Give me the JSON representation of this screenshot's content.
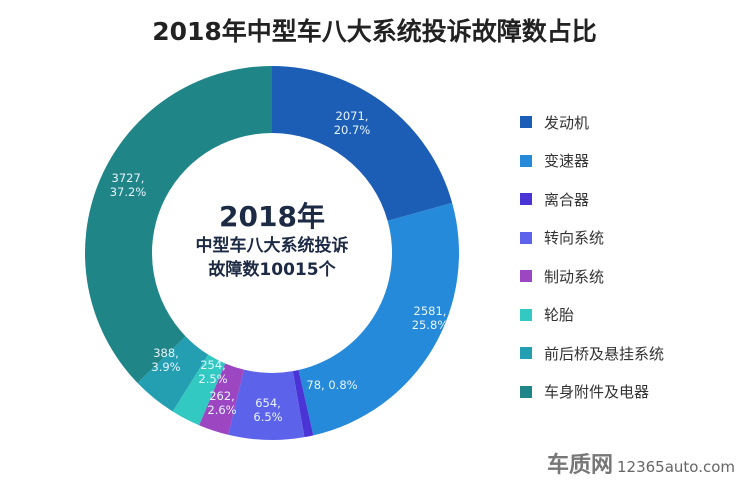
{
  "chart_data": {
    "type": "pie",
    "variant": "donut",
    "title": "2018年中型车八大系统投诉故障数占比",
    "center_text": {
      "year": "2018年",
      "line1": "中型车八大系统投诉",
      "line2": "故障数10015个"
    },
    "legend_position": "right",
    "slices": [
      {
        "name": "发动机",
        "value": 2071,
        "percent": "20.7%",
        "color": "#1c5eb5"
      },
      {
        "name": "变速器",
        "value": 2581,
        "percent": "25.8%",
        "color": "#258ad9"
      },
      {
        "name": "离合器",
        "value": 78,
        "percent": "0.8%",
        "color": "#4a34d6"
      },
      {
        "name": "转向系统",
        "value": 654,
        "percent": "6.5%",
        "color": "#5d62ea"
      },
      {
        "name": "制动系统",
        "value": 262,
        "percent": "2.6%",
        "color": "#9c46c2"
      },
      {
        "name": "轮胎",
        "value": 254,
        "percent": "2.5%",
        "color": "#31c9c2"
      },
      {
        "name": "前后桥及悬挂系统",
        "value": 388,
        "percent": "3.9%",
        "color": "#249fb2"
      },
      {
        "name": "车身附件及电器",
        "value": 3727,
        "percent": "37.2%",
        "color": "#1f8587"
      }
    ]
  },
  "watermark": {
    "logo": "车质网",
    "site": "12365auto.com"
  }
}
